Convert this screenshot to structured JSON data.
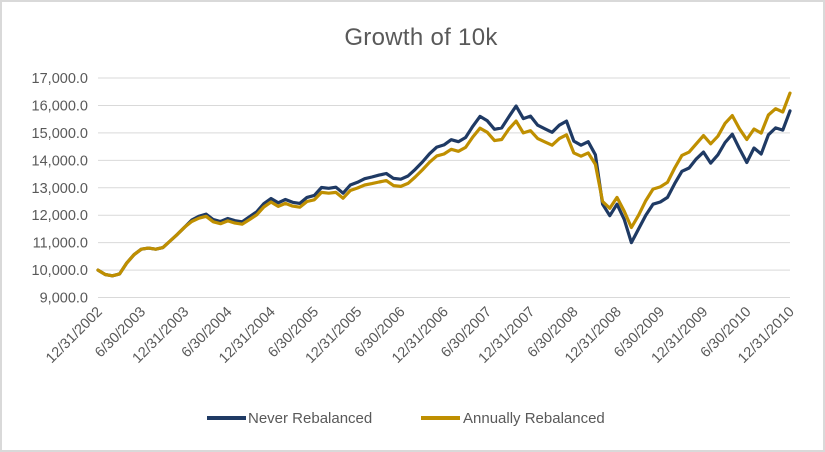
{
  "colors": {
    "text": "#595959",
    "gridline": "#D9D9D9",
    "border": "#D9D9D9",
    "background": "#FFFFFF",
    "never_rebalanced": "#1F3A64",
    "annually_rebalanced": "#BF8F00"
  },
  "chart_data": {
    "type": "line",
    "title": "Growth of 10k",
    "grid": "horizontal",
    "legend_position": "bottom",
    "x_axis": {
      "tick_labels": [
        "12/31/2002",
        "6/30/2003",
        "12/31/2003",
        "6/30/2004",
        "12/31/2004",
        "6/30/2005",
        "12/31/2005",
        "6/30/2006",
        "12/31/2006",
        "6/30/2007",
        "12/31/2007",
        "6/30/2008",
        "12/31/2008",
        "6/30/2009",
        "12/31/2009",
        "6/30/2010",
        "12/31/2010"
      ],
      "ticks_every_n_points": 6,
      "points_total": 97,
      "label_rotation_deg": 45
    },
    "y_axis": {
      "min": 9000,
      "max": 17000,
      "step": 1000,
      "tick_labels": [
        "9,000.0",
        "10,000.0",
        "11,000.0",
        "12,000.0",
        "13,000.0",
        "14,000.0",
        "15,000.0",
        "16,000.0",
        "17,000.0"
      ]
    },
    "series": [
      {
        "name": "Never Rebalanced",
        "color": "#1F3A64",
        "values": [
          10000,
          9840,
          9790,
          9860,
          10260,
          10560,
          10760,
          10800,
          10760,
          10820,
          11060,
          11300,
          11560,
          11820,
          11960,
          12040,
          11840,
          11770,
          11880,
          11800,
          11760,
          11940,
          12120,
          12420,
          12610,
          12450,
          12570,
          12470,
          12430,
          12650,
          12720,
          13010,
          12980,
          13020,
          12800,
          13100,
          13200,
          13330,
          13390,
          13460,
          13520,
          13340,
          13310,
          13430,
          13670,
          13940,
          14240,
          14480,
          14560,
          14750,
          14680,
          14830,
          15240,
          15600,
          15440,
          15130,
          15180,
          15590,
          15980,
          15520,
          15610,
          15280,
          15150,
          15020,
          15280,
          15430,
          14700,
          14550,
          14680,
          14200,
          12400,
          11980,
          12400,
          11850,
          11000,
          11500,
          12000,
          12400,
          12480,
          12650,
          13150,
          13600,
          13720,
          14050,
          14300,
          13900,
          14200,
          14650,
          14950,
          14420,
          13920,
          14450,
          14230,
          14930,
          15180,
          15100,
          15800
        ]
      },
      {
        "name": "Annually Rebalanced",
        "color": "#BF8F00",
        "values": [
          10000,
          9840,
          9790,
          9860,
          10260,
          10560,
          10760,
          10800,
          10760,
          10820,
          11060,
          11300,
          11560,
          11770,
          11890,
          11960,
          11760,
          11690,
          11790,
          11710,
          11670,
          11840,
          12010,
          12300,
          12480,
          12320,
          12430,
          12330,
          12290,
          12500,
          12560,
          12830,
          12800,
          12830,
          12620,
          12900,
          12990,
          13100,
          13150,
          13210,
          13260,
          13080,
          13050,
          13160,
          13390,
          13650,
          13930,
          14160,
          14230,
          14400,
          14330,
          14470,
          14850,
          15170,
          15020,
          14720,
          14760,
          15140,
          15430,
          15000,
          15080,
          14790,
          14670,
          14550,
          14790,
          14930,
          14270,
          14150,
          14270,
          13850,
          12500,
          12250,
          12650,
          12150,
          11550,
          12000,
          12530,
          12950,
          13030,
          13200,
          13720,
          14180,
          14300,
          14600,
          14900,
          14600,
          14880,
          15350,
          15630,
          15150,
          14760,
          15140,
          14990,
          15650,
          15880,
          15760,
          16450
        ]
      }
    ]
  }
}
